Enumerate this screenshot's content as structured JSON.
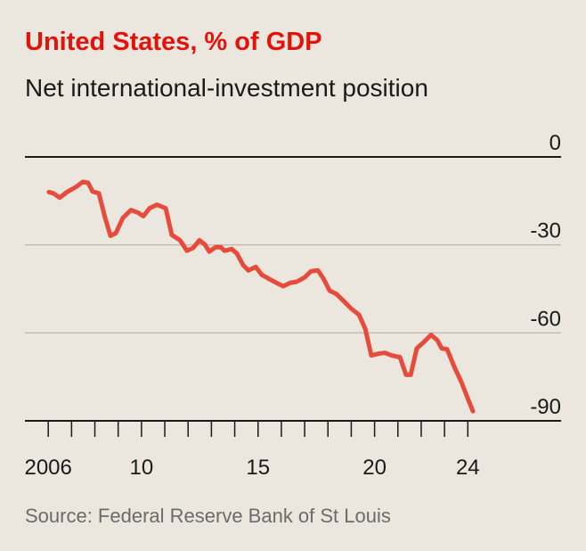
{
  "chart_data": {
    "type": "line",
    "title": "United States, % of GDP",
    "subtitle": "Net international-investment position",
    "source": "Source: Federal Reserve Bank of St Louis",
    "xlim": [
      2005,
      2028
    ],
    "xticks": [
      {
        "value": 2006,
        "label": "2006"
      },
      {
        "value": 2010,
        "label": "10"
      },
      {
        "value": 2015,
        "label": "15"
      },
      {
        "value": 2020,
        "label": "20"
      },
      {
        "value": 2024,
        "label": "24"
      }
    ],
    "xminorticks": [
      2006,
      2007,
      2008,
      2009,
      2010,
      2011,
      2012,
      2013,
      2014,
      2015,
      2016,
      2017,
      2018,
      2019,
      2020,
      2021,
      2022,
      2023,
      2024
    ],
    "ylim": [
      -90,
      0
    ],
    "yticks": [
      0,
      -30,
      -60,
      -90
    ],
    "grid": true,
    "series": [
      {
        "name": "Net international-investment position",
        "color": "#e64b3c",
        "x": [
          2006.03,
          2006.22,
          2006.49,
          2006.8,
          2007.18,
          2007.48,
          2007.71,
          2007.9,
          2008.17,
          2008.44,
          2008.67,
          2008.9,
          2009.2,
          2009.55,
          2009.85,
          2010.08,
          2010.35,
          2010.66,
          2011.04,
          2011.3,
          2011.65,
          2011.95,
          2012.22,
          2012.49,
          2012.72,
          2012.91,
          2013.18,
          2013.41,
          2013.56,
          2013.87,
          2014.09,
          2014.36,
          2014.59,
          2014.9,
          2015.16,
          2015.43,
          2015.78,
          2016.08,
          2016.39,
          2016.65,
          2017.0,
          2017.27,
          2017.57,
          2017.8,
          2018.07,
          2018.37,
          2018.68,
          2018.99,
          2019.33,
          2019.6,
          2019.86,
          2020.17,
          2020.44,
          2020.74,
          2021.09,
          2021.35,
          2021.55,
          2021.81,
          2022.12,
          2022.42,
          2022.69,
          2022.88,
          2023.11,
          2023.42,
          2023.72,
          2023.99,
          2024.22
        ],
        "values": [
          -12,
          -12.4,
          -13.9,
          -12,
          -10.3,
          -8.5,
          -8.8,
          -11.8,
          -12.4,
          -20.8,
          -26.9,
          -26,
          -20.8,
          -18.1,
          -19,
          -20.2,
          -17.5,
          -16.3,
          -17.5,
          -26.6,
          -28.4,
          -32,
          -31,
          -28.4,
          -29.9,
          -32.3,
          -30.8,
          -30.8,
          -32,
          -31.4,
          -32.9,
          -36.9,
          -38.7,
          -37.5,
          -40.2,
          -41.4,
          -42.9,
          -44.1,
          -42.9,
          -42.6,
          -41.1,
          -39,
          -38.7,
          -41.4,
          -45.6,
          -46.8,
          -49.2,
          -51.7,
          -53.8,
          -58.6,
          -67.7,
          -67.1,
          -66.8,
          -67.7,
          -68.3,
          -74.3,
          -74.3,
          -65.3,
          -63.1,
          -60.7,
          -62.5,
          -65.3,
          -65.6,
          -71.6,
          -76.7,
          -82.2,
          -86.7
        ]
      }
    ]
  }
}
